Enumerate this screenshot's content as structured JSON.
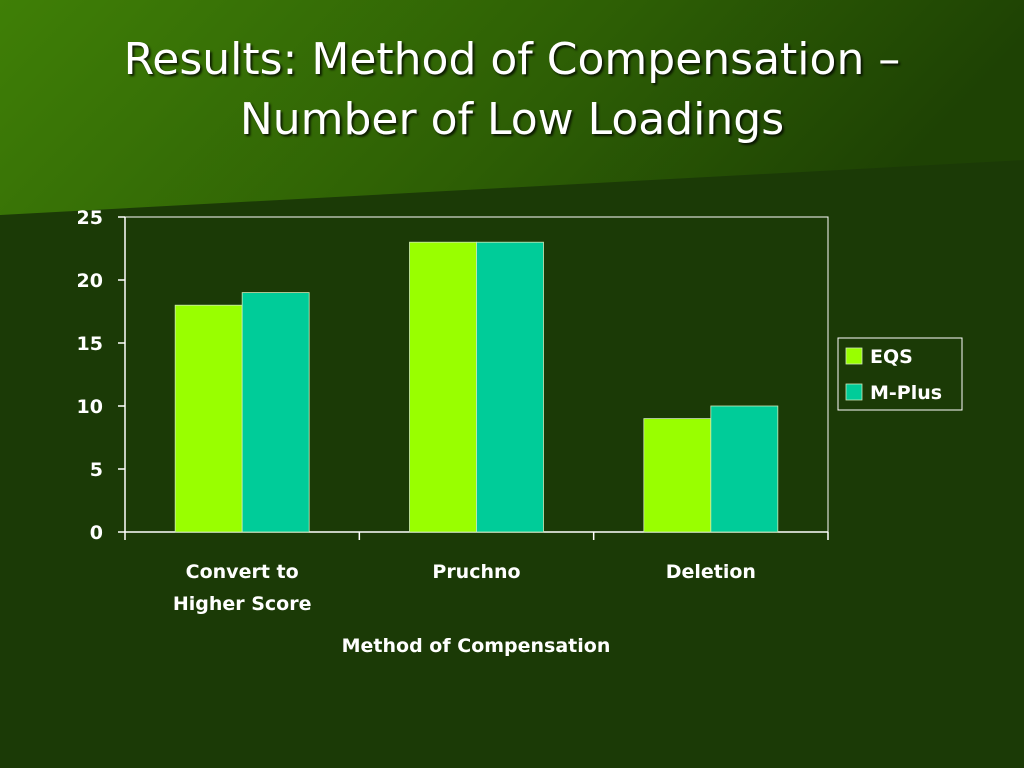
{
  "slide": {
    "title_line1": "Results: Method of Compensation –",
    "title_line2": "Number of Low Loadings"
  },
  "colors": {
    "background": "#1b3a06",
    "header_band": "#3d7a08",
    "axis": "#ffffff",
    "eqs": "#99ff00",
    "mplus": "#00cc99"
  },
  "chart_data": {
    "type": "bar",
    "categories": [
      [
        "Convert to",
        "Higher Score"
      ],
      [
        "Pruchno"
      ],
      [
        "Deletion"
      ]
    ],
    "series": [
      {
        "name": "EQS",
        "values": [
          18,
          23,
          9
        ]
      },
      {
        "name": "M-Plus",
        "values": [
          19,
          23,
          10
        ]
      }
    ],
    "xlabel": "Method of Compensation",
    "ylabel": "",
    "ylim": [
      0,
      25
    ],
    "yticks": [
      0,
      5,
      10,
      15,
      20,
      25
    ],
    "grid": false,
    "legend": "right"
  }
}
